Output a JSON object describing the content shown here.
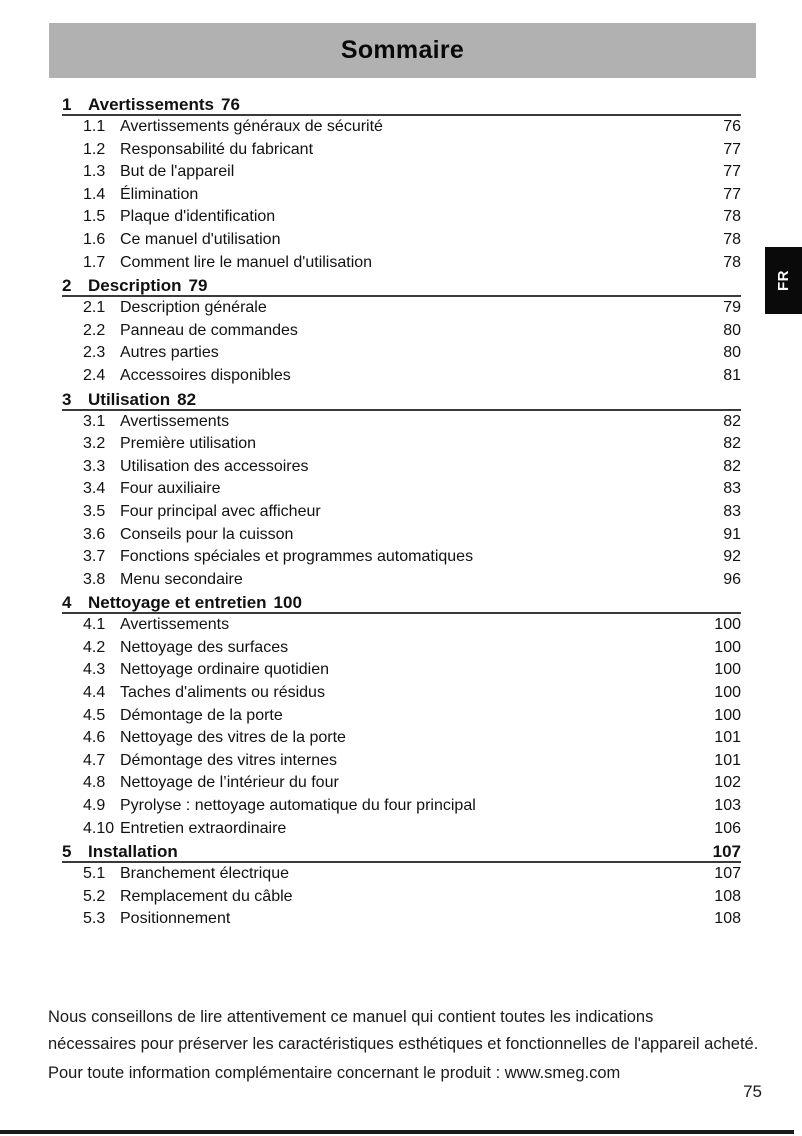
{
  "page": {
    "title": "Sommaire",
    "language_tab": "FR",
    "page_number": "75"
  },
  "colors": {
    "header_bg": "#b1b1b1",
    "tab_bg": "#0a0a0a",
    "rule": "#3a3a3a"
  },
  "toc": {
    "sections": [
      {
        "number": "1",
        "title": "Avertissements",
        "page": "76",
        "page_inline": true,
        "items": [
          {
            "number": "1.1",
            "title": "Avertissements généraux de sécurité",
            "page": "76"
          },
          {
            "number": "1.2",
            "title": "Responsabilité du fabricant",
            "page": "77"
          },
          {
            "number": "1.3",
            "title": "But de l'appareil",
            "page": "77"
          },
          {
            "number": "1.4",
            "title": "Élimination",
            "page": "77"
          },
          {
            "number": "1.5",
            "title": "Plaque d'identification",
            "page": "78"
          },
          {
            "number": "1.6",
            "title": "Ce manuel d'utilisation",
            "page": "78"
          },
          {
            "number": "1.7",
            "title": "Comment lire le manuel d'utilisation",
            "page": "78"
          }
        ]
      },
      {
        "number": "2",
        "title": "Description",
        "page": "79",
        "page_inline": true,
        "items": [
          {
            "number": "2.1",
            "title": "Description générale",
            "page": "79"
          },
          {
            "number": "2.2",
            "title": "Panneau de commandes",
            "page": "80"
          },
          {
            "number": "2.3",
            "title": "Autres parties",
            "page": "80"
          },
          {
            "number": "2.4",
            "title": "Accessoires disponibles",
            "page": "81"
          }
        ]
      },
      {
        "number": "3",
        "title": "Utilisation",
        "page": "82",
        "page_inline": true,
        "items": [
          {
            "number": "3.1",
            "title": "Avertissements",
            "page": "82"
          },
          {
            "number": "3.2",
            "title": "Première utilisation",
            "page": "82"
          },
          {
            "number": "3.3",
            "title": "Utilisation des accessoires",
            "page": "82"
          },
          {
            "number": "3.4",
            "title": "Four auxiliaire",
            "page": "83"
          },
          {
            "number": "3.5",
            "title": "Four principal avec afficheur",
            "page": "83"
          },
          {
            "number": "3.6",
            "title": "Conseils pour la cuisson",
            "page": "91"
          },
          {
            "number": "3.7",
            "title": "Fonctions spéciales et programmes automatiques",
            "page": "92"
          },
          {
            "number": "3.8",
            "title": "Menu secondaire",
            "page": "96"
          }
        ]
      },
      {
        "number": "4",
        "title": "Nettoyage et entretien",
        "page": "100",
        "page_inline": true,
        "items": [
          {
            "number": "4.1",
            "title": "Avertissements",
            "page": "100"
          },
          {
            "number": "4.2",
            "title": "Nettoyage des surfaces",
            "page": "100"
          },
          {
            "number": "4.3",
            "title": "Nettoyage ordinaire quotidien",
            "page": "100"
          },
          {
            "number": "4.4",
            "title": "Taches d'aliments ou résidus",
            "page": "100"
          },
          {
            "number": "4.5",
            "title": "Démontage de la porte",
            "page": "100"
          },
          {
            "number": "4.6",
            "title": "Nettoyage des vitres de la porte",
            "page": "101"
          },
          {
            "number": "4.7",
            "title": "Démontage des vitres internes",
            "page": "101"
          },
          {
            "number": "4.8",
            "title": "Nettoyage de l’intérieur du four",
            "page": "102"
          },
          {
            "number": "4.9",
            "title": "Pyrolyse : nettoyage automatique du four principal",
            "page": "103"
          },
          {
            "number": "4.10",
            "title": "Entretien extraordinaire",
            "page": "106"
          }
        ]
      },
      {
        "number": "5",
        "title": "Installation",
        "page": "107",
        "page_inline": false,
        "items": [
          {
            "number": "5.1",
            "title": "Branchement électrique",
            "page": "107"
          },
          {
            "number": "5.2",
            "title": "Remplacement du câble",
            "page": "108"
          },
          {
            "number": "5.3",
            "title": "Positionnement",
            "page": "108"
          }
        ]
      }
    ]
  },
  "footer": {
    "lines": [
      "Nous conseillons de lire attentivement ce manuel qui contient toutes les indications",
      "nécessaires pour préserver les caractéristiques esthétiques et fonctionnelles de l'appareil acheté.",
      "Pour toute information complémentaire concernant le produit : www.smeg.com"
    ]
  }
}
